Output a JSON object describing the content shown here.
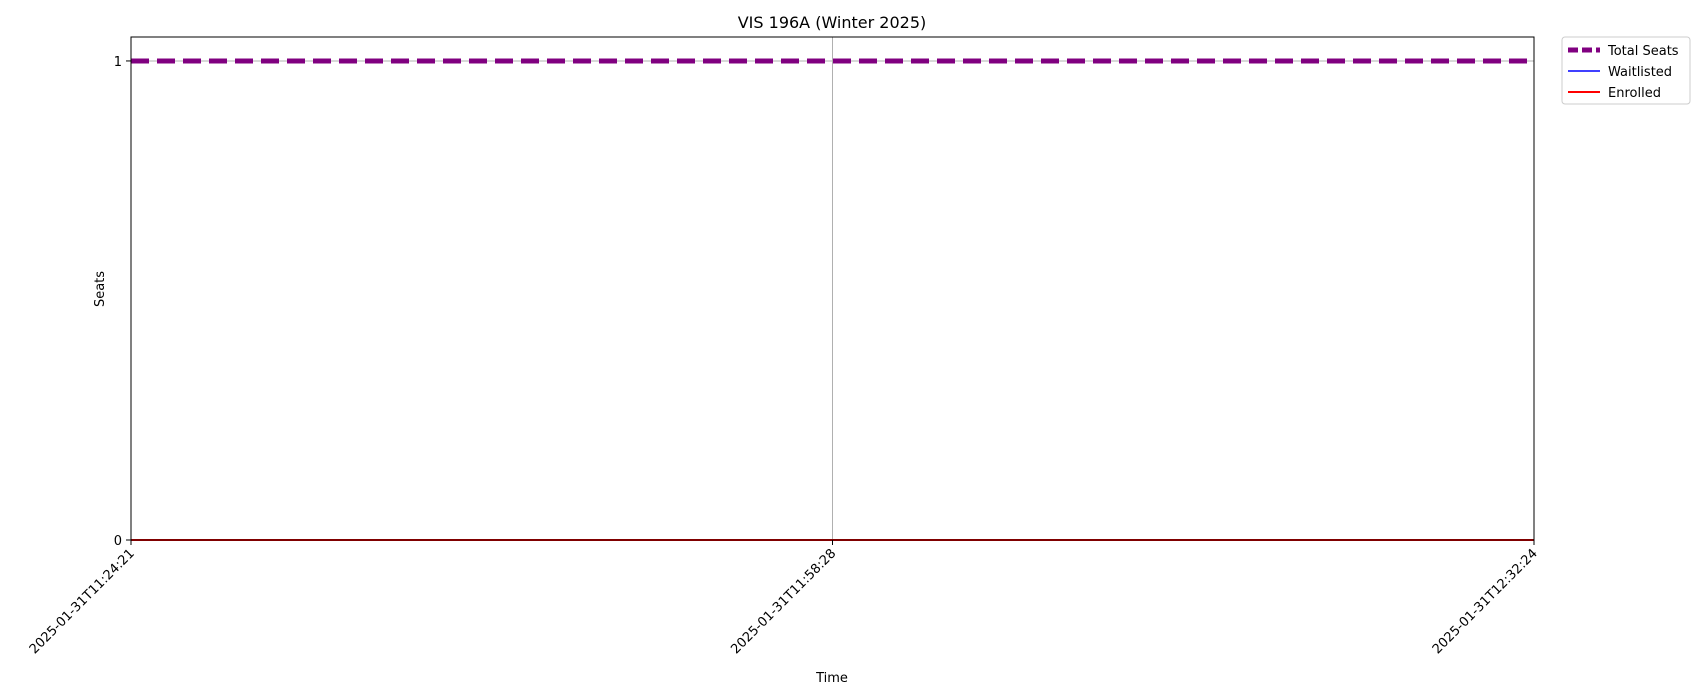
{
  "chart_data": {
    "type": "line",
    "title": "VIS 196A (Winter 2025)",
    "xlabel": "Time",
    "ylabel": "Seats",
    "x": [
      "2025-01-31T11:24:21",
      "2025-01-31T11:58:28",
      "2025-01-31T12:32:24"
    ],
    "xticks": [
      "2025-01-31T11:24:21",
      "2025-01-31T11:58:28",
      "2025-01-31T12:32:24"
    ],
    "yticks": [
      0,
      1
    ],
    "ylim": [
      0,
      1.05
    ],
    "grid": true,
    "legend_position": "outside-top-right",
    "series": [
      {
        "name": "Total Seats",
        "values": [
          1,
          1,
          1
        ],
        "color": "#800080",
        "style": "dashed"
      },
      {
        "name": "Waitlisted",
        "values": [
          0,
          0,
          0
        ],
        "color": "#0000ff",
        "style": "solid"
      },
      {
        "name": "Enrolled",
        "values": [
          0,
          0,
          0
        ],
        "color": "#ff0000",
        "style": "solid"
      }
    ]
  }
}
